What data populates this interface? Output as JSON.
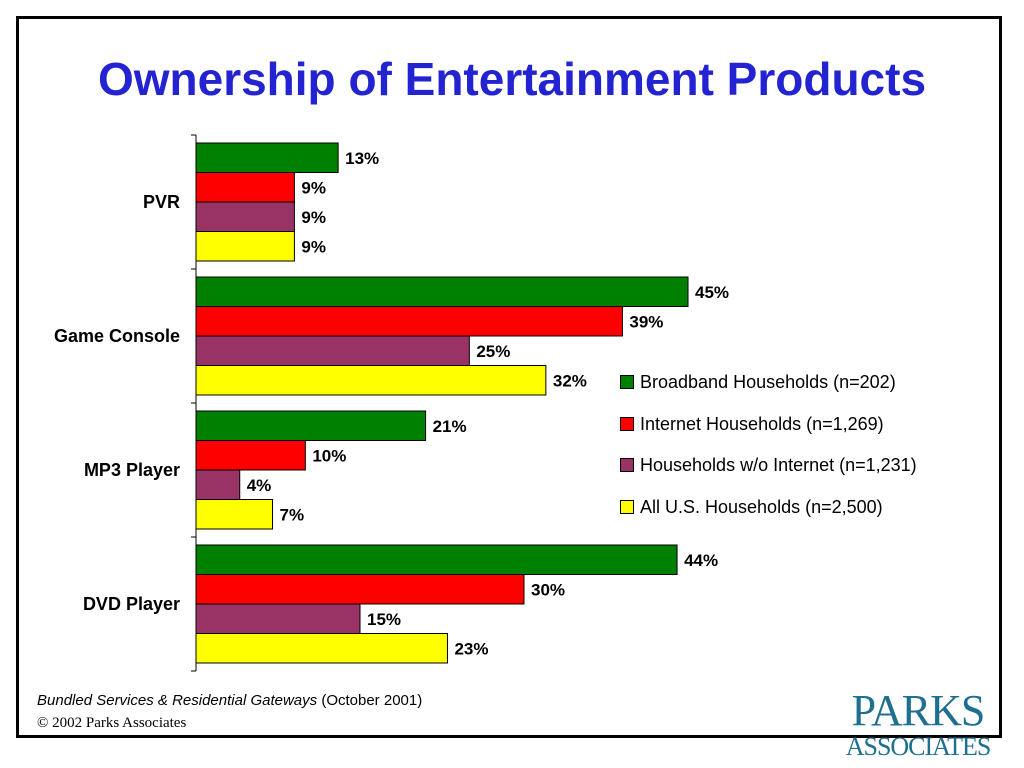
{
  "title": "Ownership of Entertainment Products",
  "chart_data": {
    "type": "bar",
    "orientation": "horizontal",
    "categories": [
      "PVR",
      "Game Console",
      "MP3 Player",
      "DVD Player"
    ],
    "series": [
      {
        "name": "Broadband Households (n=202)",
        "color": "#008000",
        "values": [
          13,
          45,
          21,
          44
        ]
      },
      {
        "name": "Internet Households (n=1,269)",
        "color": "#ff0000",
        "values": [
          9,
          39,
          10,
          30
        ]
      },
      {
        "name": "Households w/o Internet (n=1,231)",
        "color": "#993366",
        "values": [
          9,
          25,
          4,
          15
        ]
      },
      {
        "name": "All U.S. Households (n=2,500)",
        "color": "#ffff00",
        "values": [
          9,
          32,
          7,
          23
        ]
      }
    ],
    "value_suffix": "%",
    "data_labels": true,
    "xlim": [
      0,
      50
    ],
    "grid": false,
    "legend_position": "right"
  },
  "footer": {
    "publication": "Bundled Services & Residential Gateways",
    "date": "(October 2001)",
    "copyright": "© 2002 Parks Associates"
  },
  "logo": {
    "line1": "PARKS",
    "line2": "ASSOCIATES"
  }
}
